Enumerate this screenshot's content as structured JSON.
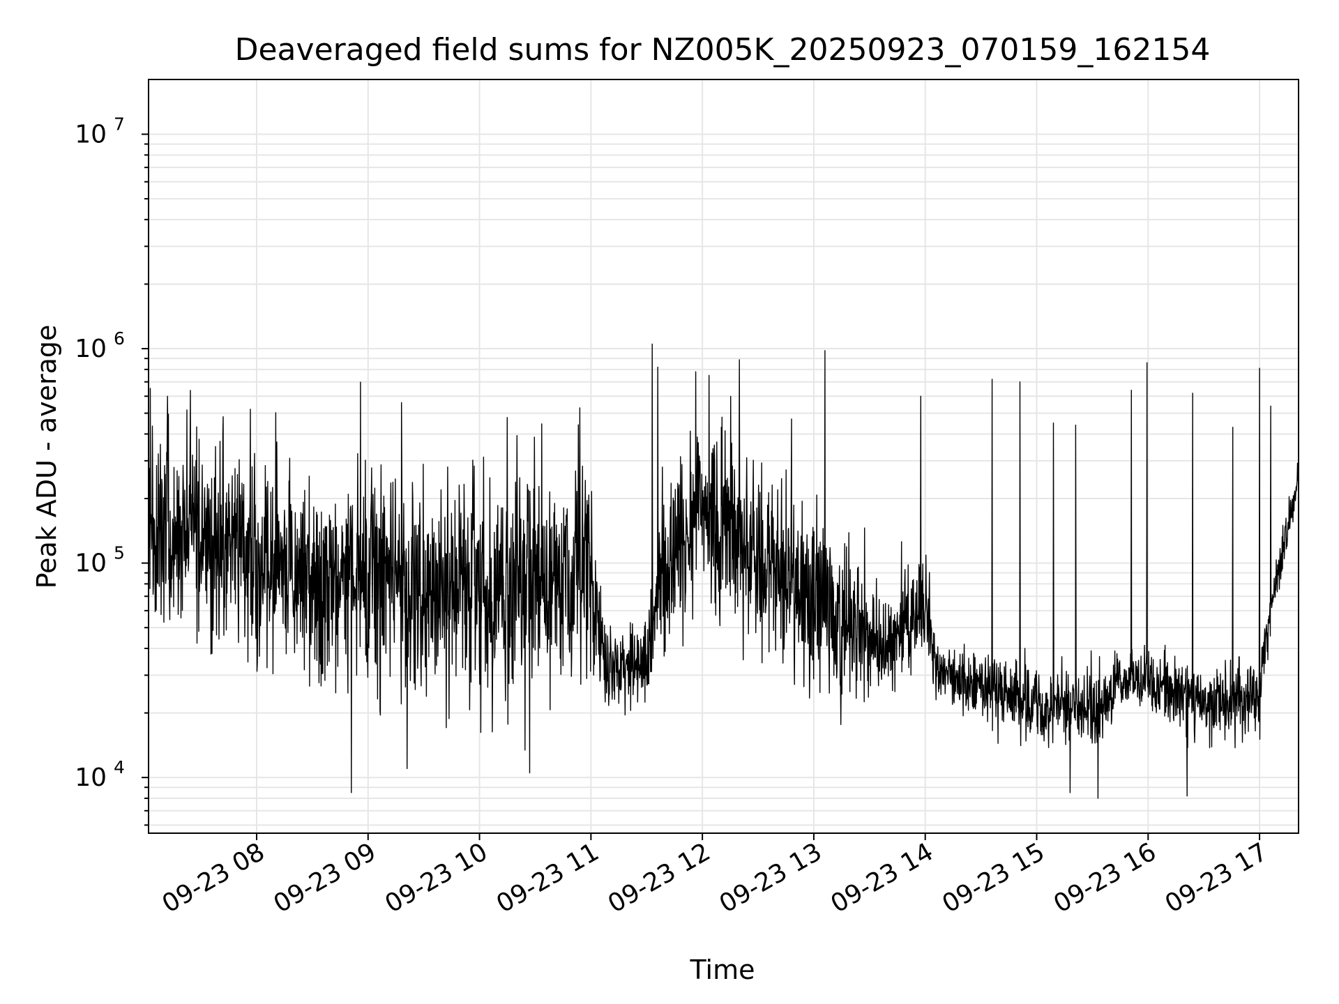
{
  "chart_data": {
    "type": "line",
    "title": "Deaveraged field sums for NZ005K_20250923_070159_162154",
    "xlabel": "Time",
    "ylabel": "Peak ADU - average",
    "yscale": "log",
    "ylim": [
      5500,
      18000000
    ],
    "xlim_hours": [
      7.03,
      17.35
    ],
    "grid": true,
    "line_color": "#000000",
    "grid_color": "#e6e6e6",
    "x_ticks": [
      {
        "label": "09-23 08",
        "hour": 8
      },
      {
        "label": "09-23 09",
        "hour": 9
      },
      {
        "label": "09-23 10",
        "hour": 10
      },
      {
        "label": "09-23 11",
        "hour": 11
      },
      {
        "label": "09-23 12",
        "hour": 12
      },
      {
        "label": "09-23 13",
        "hour": 13
      },
      {
        "label": "09-23 14",
        "hour": 14
      },
      {
        "label": "09-23 15",
        "hour": 15
      },
      {
        "label": "09-23 16",
        "hour": 16
      },
      {
        "label": "09-23 17",
        "hour": 17
      }
    ],
    "y_ticks": [
      {
        "base": "10",
        "exp": "4",
        "value": 10000
      },
      {
        "base": "10",
        "exp": "5",
        "value": 100000
      },
      {
        "base": "10",
        "exp": "6",
        "value": 1000000
      },
      {
        "base": "10",
        "exp": "7",
        "value": 10000000
      }
    ],
    "series": [
      {
        "name": "Deaveraged field sums",
        "baseline_segments": [
          {
            "hour": 7.03,
            "median": 140000,
            "spread": 0.45
          },
          {
            "hour": 7.5,
            "median": 150000,
            "spread": 0.42
          },
          {
            "hour": 8.0,
            "median": 100000,
            "spread": 0.4
          },
          {
            "hour": 8.5,
            "median": 85000,
            "spread": 0.38
          },
          {
            "hour": 9.0,
            "median": 80000,
            "spread": 0.45
          },
          {
            "hour": 10.0,
            "median": 75000,
            "spread": 0.45
          },
          {
            "hour": 11.0,
            "median": 90000,
            "spread": 0.45
          },
          {
            "hour": 11.15,
            "median": 30000,
            "spread": 0.14
          },
          {
            "hour": 11.5,
            "median": 35000,
            "spread": 0.15
          },
          {
            "hour": 11.65,
            "median": 100000,
            "spread": 0.45
          },
          {
            "hour": 12.0,
            "median": 180000,
            "spread": 0.35
          },
          {
            "hour": 12.5,
            "median": 100000,
            "spread": 0.4
          },
          {
            "hour": 13.0,
            "median": 70000,
            "spread": 0.4
          },
          {
            "hour": 13.6,
            "median": 40000,
            "spread": 0.2
          },
          {
            "hour": 14.0,
            "median": 60000,
            "spread": 0.22
          },
          {
            "hour": 14.1,
            "median": 32000,
            "spread": 0.13
          },
          {
            "hour": 15.0,
            "median": 22000,
            "spread": 0.15
          },
          {
            "hour": 15.6,
            "median": 20000,
            "spread": 0.15
          },
          {
            "hour": 15.75,
            "median": 30000,
            "spread": 0.12
          },
          {
            "hour": 16.0,
            "median": 28000,
            "spread": 0.13
          },
          {
            "hour": 16.5,
            "median": 22000,
            "spread": 0.14
          },
          {
            "hour": 17.0,
            "median": 25000,
            "spread": 0.15
          },
          {
            "hour": 17.1,
            "median": 60000,
            "spread": 0.1
          },
          {
            "hour": 17.35,
            "median": 250000,
            "spread": 0.08
          }
        ],
        "spikes": [
          {
            "hour": 11.55,
            "value": 1050000
          },
          {
            "hour": 11.6,
            "value": 820000
          },
          {
            "hour": 13.1,
            "value": 980000
          },
          {
            "hour": 15.99,
            "value": 860000
          },
          {
            "hour": 17.0,
            "value": 810000
          },
          {
            "hour": 11.94,
            "value": 780000
          },
          {
            "hour": 12.06,
            "value": 750000
          },
          {
            "hour": 14.6,
            "value": 720000
          },
          {
            "hour": 14.85,
            "value": 700000
          },
          {
            "hour": 15.85,
            "value": 640000
          },
          {
            "hour": 16.4,
            "value": 620000
          },
          {
            "hour": 13.96,
            "value": 600000
          },
          {
            "hour": 7.2,
            "value": 600000
          },
          {
            "hour": 9.3,
            "value": 560000
          },
          {
            "hour": 17.1,
            "value": 540000
          },
          {
            "hour": 15.15,
            "value": 450000
          },
          {
            "hour": 15.35,
            "value": 440000
          },
          {
            "hour": 16.76,
            "value": 430000
          },
          {
            "hour": 10.9,
            "value": 530000
          },
          {
            "hour": 12.8,
            "value": 470000
          }
        ],
        "dips": [
          {
            "hour": 8.85,
            "value": 8500
          },
          {
            "hour": 15.3,
            "value": 8500
          },
          {
            "hour": 15.55,
            "value": 8000
          },
          {
            "hour": 16.35,
            "value": 8200
          },
          {
            "hour": 9.35,
            "value": 11000
          },
          {
            "hour": 10.45,
            "value": 10500
          }
        ]
      }
    ]
  }
}
